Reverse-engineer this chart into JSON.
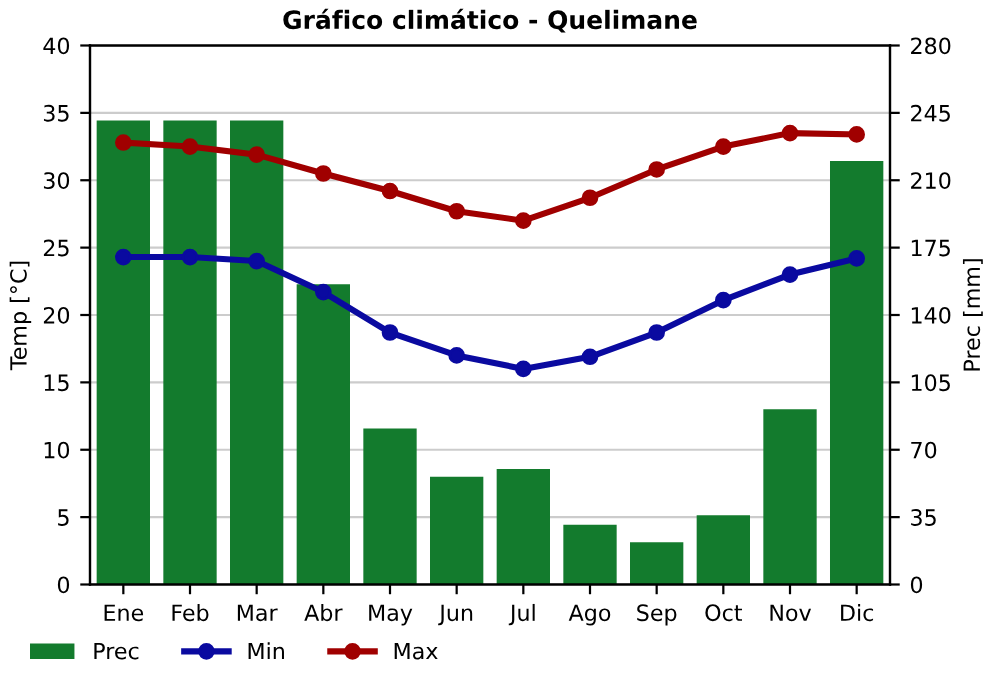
{
  "chart_data": {
    "type": "bar",
    "title": "Gráfico climático - Quelimane",
    "ylabel": "Temp [°C]",
    "y2label": "Prec [mm]",
    "categories": [
      "Ene",
      "Feb",
      "Mar",
      "Abr",
      "May",
      "Jun",
      "Jul",
      "Ago",
      "Sep",
      "Oct",
      "Nov",
      "Dic"
    ],
    "series": [
      {
        "name": "Prec",
        "axis": "y2",
        "color": "#137b2d",
        "values": [
          241,
          241,
          241,
          156,
          81,
          56,
          60,
          31,
          22,
          36,
          91,
          220
        ]
      },
      {
        "name": "Min",
        "type": "line",
        "color": "#0a0aa0",
        "values": [
          24.3,
          24.3,
          24.0,
          21.7,
          18.7,
          17.0,
          16.0,
          16.9,
          18.7,
          21.1,
          23.0,
          24.2
        ]
      },
      {
        "name": "Max",
        "type": "line",
        "color": "#a00000",
        "values": [
          32.8,
          32.5,
          31.9,
          30.5,
          29.2,
          27.7,
          27.0,
          28.7,
          30.8,
          32.5,
          33.5,
          33.4
        ]
      }
    ],
    "ylim": [
      0,
      40
    ],
    "yticks": [
      0,
      5,
      10,
      15,
      20,
      25,
      30,
      35,
      40
    ],
    "y2lim": [
      0,
      280
    ],
    "y2ticks": [
      0,
      35,
      70,
      105,
      140,
      175,
      210,
      245,
      280
    ],
    "grid": "y",
    "legend": "bottom",
    "marker": "circle",
    "line_style": "solid"
  }
}
